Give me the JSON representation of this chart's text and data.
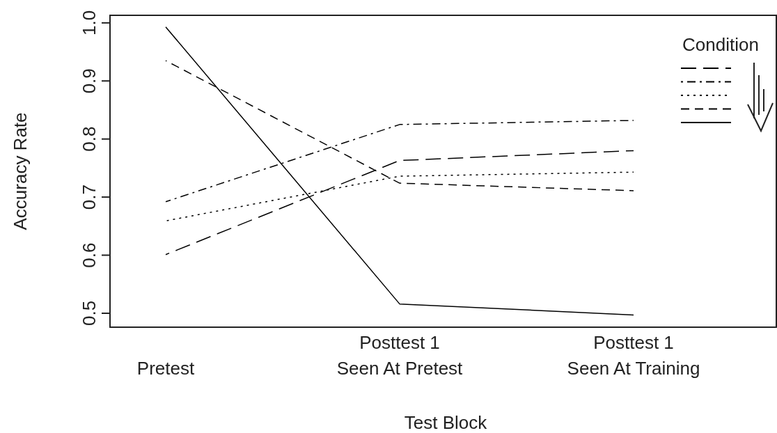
{
  "chart_data": {
    "type": "line",
    "xlabel": "Test Block",
    "ylabel": "Accuracy Rate",
    "legend_title": "Condition",
    "categories": [
      "Pretest",
      "Posttest 1\nSeen At Pretest",
      "Posttest 1\nSeen At Training"
    ],
    "ylim": [
      0.476,
      1.013
    ],
    "yticks": [
      {
        "value": 0.5,
        "label": "0.5"
      },
      {
        "value": 0.6,
        "label": "0.6"
      },
      {
        "value": 0.7,
        "label": "0.7"
      },
      {
        "value": 0.8,
        "label": "0.8"
      },
      {
        "value": 0.9,
        "label": "0.9"
      },
      {
        "value": 1,
        "label": "1.0"
      }
    ],
    "series": [
      {
        "color": "#000000",
        "line_style": "longdash",
        "values": [
          0.601,
          0.763,
          0.78
        ]
      },
      {
        "color": "#000000",
        "line_style": "dashdot",
        "values": [
          0.692,
          0.825,
          0.832
        ]
      },
      {
        "color": "#000000",
        "line_style": "dotted",
        "values": [
          0.659,
          0.736,
          0.743
        ]
      },
      {
        "color": "#000000",
        "line_style": "dashed",
        "values": [
          0.935,
          0.724,
          0.711
        ]
      },
      {
        "color": "#000000",
        "line_style": "solid",
        "values": [
          0.993,
          0.516,
          0.497
        ]
      }
    ]
  }
}
